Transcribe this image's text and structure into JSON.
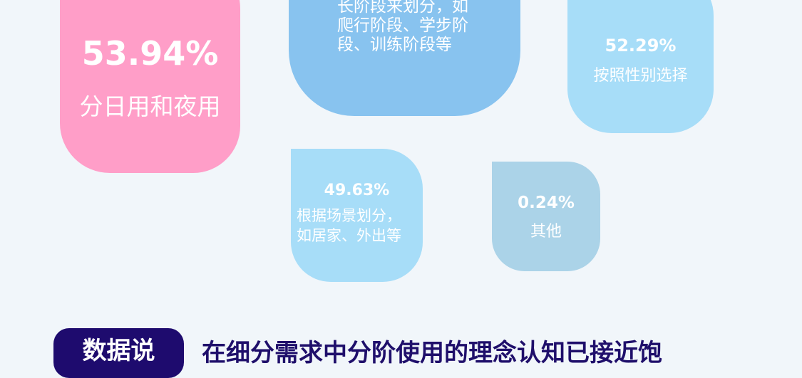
{
  "colors": {
    "background": "#f1f6fa",
    "pink": "#ff9ec8",
    "blue": "#88c3ef",
    "light_blue": "#a7ddf8",
    "gray_blue": "#abd3e8",
    "navy": "#1e0b6e"
  },
  "blobs": [
    {
      "percent": "53.94%",
      "label": "分日用和夜用"
    },
    {
      "label": "长阶段来划分，如\n爬行阶段、学步阶\n段、训练阶段等"
    },
    {
      "percent": "52.29%",
      "label": "按照性别选择"
    },
    {
      "percent": "49.63%",
      "label": "根据场景划分，\n如居家、外出等"
    },
    {
      "percent": "0.24%",
      "label": "其他"
    }
  ],
  "footer": {
    "badge": "数据说",
    "headline": "在细分需求中分阶使用的理念认知已接近饱"
  }
}
